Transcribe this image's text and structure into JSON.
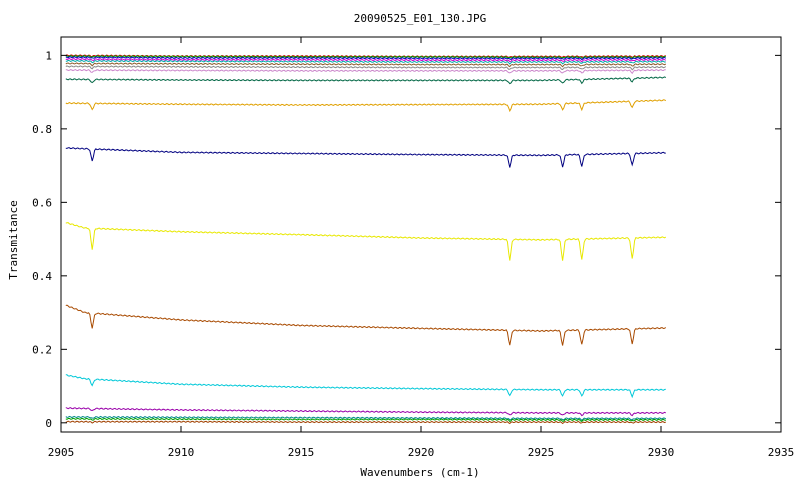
{
  "chart_data": {
    "type": "line",
    "title": "20090525_E01_130.JPG",
    "xlabel": "Wavenumbers (cm-1)",
    "ylabel": "Transmitance",
    "xlim": [
      2905,
      2935
    ],
    "ylim": [
      -0.025,
      1.05
    ],
    "xticks": [
      2905,
      2910,
      2915,
      2920,
      2925,
      2930,
      2935
    ],
    "yticks": [
      0,
      0.2,
      0.4,
      0.6,
      0.8,
      1
    ],
    "ytick_labels": [
      "0",
      "0.2",
      "0.4",
      "0.6",
      "0.8",
      "1"
    ],
    "grid": false,
    "absorption_lines_cm1": [
      2906.3,
      2923.7,
      2925.9,
      2926.7,
      2928.8
    ],
    "series": [
      {
        "color": "#d00000",
        "x": [
          2905.2,
          2910,
          2915,
          2920,
          2925,
          2930.2
        ],
        "y": [
          1.0,
          0.998,
          0.998,
          0.997,
          0.997,
          0.998
        ]
      },
      {
        "color": "#00a000",
        "x": [
          2905.2,
          2910,
          2915,
          2920,
          2925,
          2930.2
        ],
        "y": [
          0.998,
          0.997,
          0.996,
          0.996,
          0.995,
          0.996
        ]
      },
      {
        "color": "#0000c0",
        "x": [
          2905.2,
          2910,
          2915,
          2920,
          2925,
          2930.2
        ],
        "y": [
          0.995,
          0.993,
          0.993,
          0.992,
          0.992,
          0.993
        ]
      },
      {
        "color": "#cc00cc",
        "x": [
          2905.2,
          2910,
          2915,
          2920,
          2925,
          2930.2
        ],
        "y": [
          0.99,
          0.988,
          0.988,
          0.987,
          0.987,
          0.988
        ]
      },
      {
        "color": "#00aaaa",
        "x": [
          2905.2,
          2910,
          2915,
          2920,
          2925,
          2930.2
        ],
        "y": [
          0.985,
          0.984,
          0.983,
          0.982,
          0.982,
          0.983
        ]
      },
      {
        "color": "#8a5a2a",
        "x": [
          2905.2,
          2910,
          2915,
          2920,
          2925,
          2930.2
        ],
        "y": [
          0.978,
          0.977,
          0.976,
          0.975,
          0.975,
          0.976
        ]
      },
      {
        "color": "#888888",
        "x": [
          2905.2,
          2910,
          2915,
          2920,
          2925,
          2930.2
        ],
        "y": [
          0.97,
          0.969,
          0.968,
          0.967,
          0.967,
          0.968
        ]
      },
      {
        "color": "#cc88cc",
        "x": [
          2905.2,
          2910,
          2915,
          2920,
          2925,
          2930.2
        ],
        "y": [
          0.96,
          0.959,
          0.958,
          0.958,
          0.958,
          0.96
        ]
      },
      {
        "color": "#006644",
        "x": [
          2905.2,
          2910,
          2915,
          2920,
          2925,
          2930.2
        ],
        "y": [
          0.935,
          0.933,
          0.932,
          0.932,
          0.932,
          0.94
        ]
      },
      {
        "color": "#e0a000",
        "x": [
          2905.2,
          2910,
          2915,
          2920,
          2925,
          2930.2
        ],
        "y": [
          0.87,
          0.867,
          0.865,
          0.866,
          0.867,
          0.878
        ]
      },
      {
        "color": "#000080",
        "x": [
          2905.2,
          2910,
          2915,
          2920,
          2925,
          2930.2
        ],
        "y": [
          0.748,
          0.736,
          0.733,
          0.73,
          0.728,
          0.735
        ]
      },
      {
        "color": "#e8e800",
        "x": [
          2905.2,
          2906,
          2910,
          2915,
          2920,
          2925,
          2930.2
        ],
        "y": [
          0.545,
          0.53,
          0.52,
          0.512,
          0.503,
          0.498,
          0.505
        ]
      },
      {
        "color": "#a84a00",
        "x": [
          2905.2,
          2906,
          2910,
          2915,
          2920,
          2925,
          2930.2
        ],
        "y": [
          0.32,
          0.3,
          0.28,
          0.265,
          0.257,
          0.25,
          0.258
        ]
      },
      {
        "color": "#00c8d8",
        "x": [
          2905.2,
          2906,
          2910,
          2915,
          2920,
          2925,
          2930.2
        ],
        "y": [
          0.13,
          0.12,
          0.105,
          0.097,
          0.093,
          0.09,
          0.09
        ]
      },
      {
        "color": "#9900aa",
        "x": [
          2905.2,
          2910,
          2915,
          2920,
          2925,
          2930.2
        ],
        "y": [
          0.04,
          0.035,
          0.032,
          0.029,
          0.027,
          0.027
        ]
      },
      {
        "color": "#008888",
        "x": [
          2905.2,
          2910,
          2915,
          2920,
          2925,
          2930.2
        ],
        "y": [
          0.016,
          0.015,
          0.014,
          0.013,
          0.012,
          0.012
        ]
      },
      {
        "color": "#00a000",
        "x": [
          2905.2,
          2910,
          2915,
          2920,
          2925,
          2930.2
        ],
        "y": [
          0.011,
          0.01,
          0.009,
          0.009,
          0.008,
          0.008
        ]
      },
      {
        "color": "#a04000",
        "x": [
          2905.2,
          2910,
          2915,
          2920,
          2925,
          2930.2
        ],
        "y": [
          0.003,
          0.003,
          0.002,
          0.002,
          0.002,
          0.002
        ]
      }
    ]
  }
}
